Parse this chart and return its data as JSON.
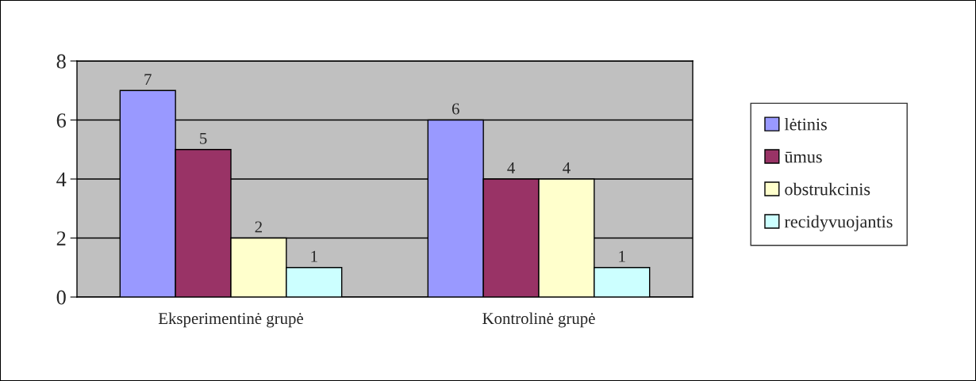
{
  "chart_data": {
    "type": "bar",
    "categories": [
      "Eksperimentinė grupė",
      "Kontrolinė grupė"
    ],
    "series": [
      {
        "name": "lėtinis",
        "color": "#9999ff",
        "values": [
          7,
          6
        ]
      },
      {
        "name": "ūmus",
        "color": "#993366",
        "values": [
          5,
          4
        ]
      },
      {
        "name": "obstrukcinis",
        "color": "#ffffcc",
        "values": [
          2,
          4
        ]
      },
      {
        "name": "recidyvuojantis",
        "color": "#ccffff",
        "values": [
          1,
          1
        ]
      }
    ],
    "ylim": [
      0,
      8
    ],
    "yticks": [
      0,
      2,
      4,
      6,
      8
    ],
    "grid": "y",
    "legend": "right",
    "data_labels": true
  }
}
